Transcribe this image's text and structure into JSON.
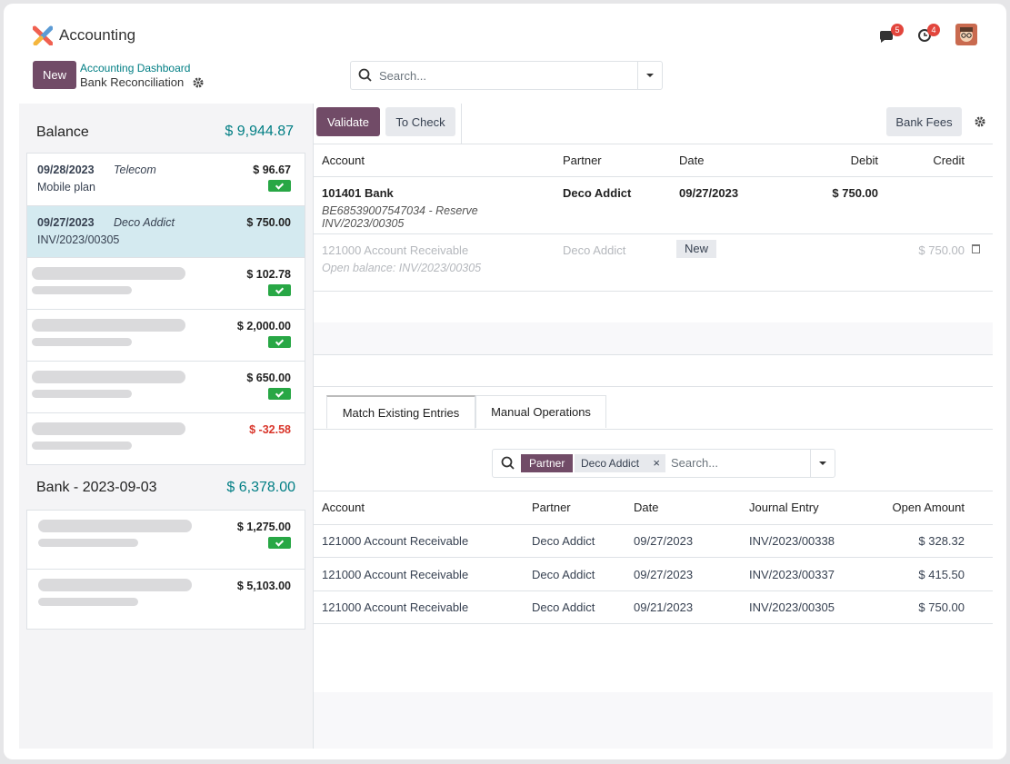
{
  "header": {
    "app_name": "Accounting",
    "new_button": "New",
    "breadcrumb_parent": "Accounting Dashboard",
    "breadcrumb_current": "Bank Reconciliation",
    "search_placeholder": "Search...",
    "messages_badge": "5",
    "activities_badge": "4"
  },
  "left_panel": {
    "balance_label": "Balance",
    "balance_amount": "$ 9,944.87",
    "lines": [
      {
        "date": "09/28/2023",
        "partner": "Telecom",
        "label": "Mobile plan",
        "amount": "$ 96.67",
        "reconciled": true
      },
      {
        "date": "09/27/2023",
        "partner": "Deco Addict",
        "label": "INV/2023/00305",
        "amount": "$ 750.00",
        "reconciled": false,
        "selected": true
      },
      {
        "amount": "$ 102.78",
        "reconciled": true
      },
      {
        "amount": "$ 2,000.00",
        "reconciled": true
      },
      {
        "amount": "$ 650.00",
        "reconciled": true
      },
      {
        "amount": "$ -32.58",
        "reconciled": false,
        "color": "#d9362b"
      }
    ],
    "statement": {
      "title": "Bank - 2023-09-03",
      "amount": "$ 6,378.00",
      "lines": [
        {
          "amount": "$ 1,275.00",
          "reconciled": true
        },
        {
          "amount": "$ 5,103.00",
          "reconciled": false
        }
      ]
    }
  },
  "toolbar": {
    "validate": "Validate",
    "to_check": "To Check",
    "bank_fees": "Bank Fees"
  },
  "entries_table": {
    "headers": [
      "Account",
      "Partner",
      "Date",
      "Debit",
      "Credit"
    ],
    "rows": [
      {
        "account": "101401 Bank",
        "partner": "Deco Addict",
        "date": "09/27/2023",
        "debit": "$ 750.00",
        "note": "BE68539007547034 - Reserve INV/2023/00305"
      },
      {
        "account": "121000 Account Receivable",
        "partner": "Deco Addict",
        "status": "New",
        "credit": "$ 750.00",
        "note": "Open balance: INV/2023/00305"
      }
    ]
  },
  "tabs": [
    "Match Existing Entries",
    "Manual Operations"
  ],
  "filter": {
    "facet_label": "Partner",
    "facet_value": "Deco Addict",
    "placeholder": "Search..."
  },
  "match_table": {
    "headers": [
      "Account",
      "Partner",
      "Date",
      "Journal Entry",
      "Open Amount"
    ],
    "rows": [
      [
        "121000 Account Receivable",
        "Deco Addict",
        "09/27/2023",
        "INV/2023/00338",
        "$ 328.32"
      ],
      [
        "121000 Account Receivable",
        "Deco Addict",
        "09/27/2023",
        "INV/2023/00337",
        "$ 415.50"
      ],
      [
        "121000 Account Receivable",
        "Deco Addict",
        "09/21/2023",
        "INV/2023/00305",
        "$ 750.00"
      ]
    ]
  }
}
